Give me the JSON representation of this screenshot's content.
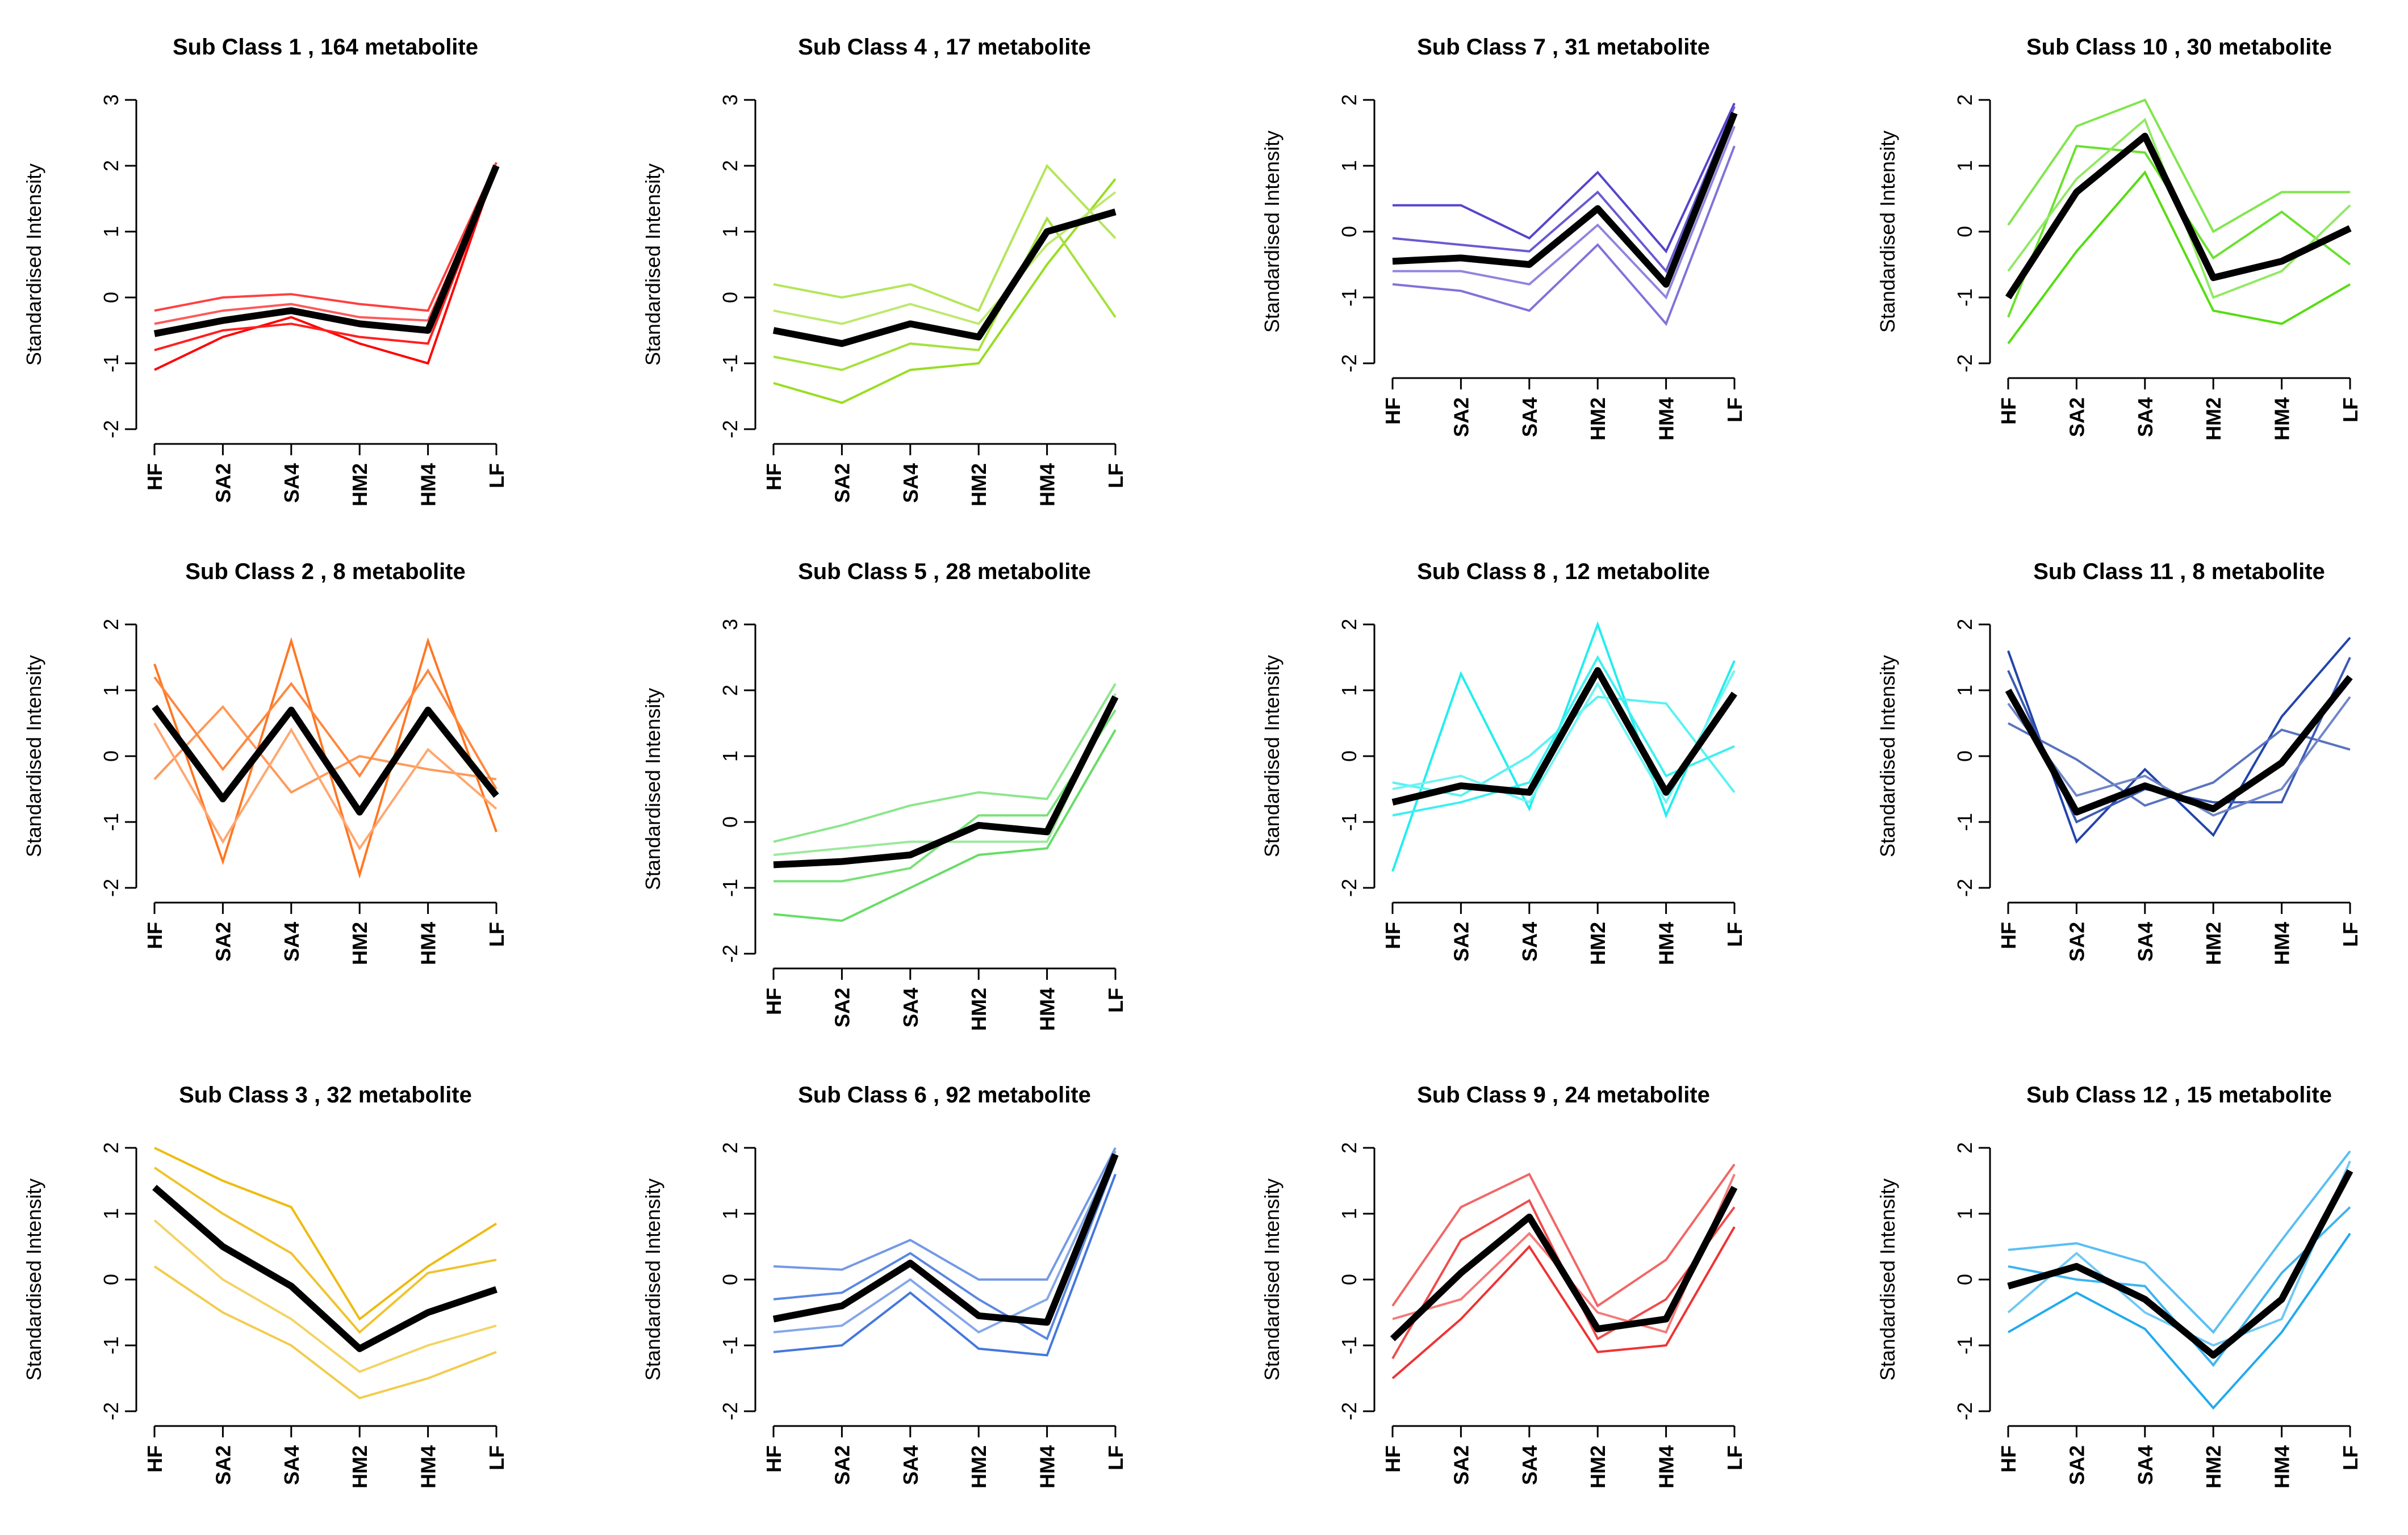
{
  "chart_data": [
    {
      "type": "line",
      "title": "Sub Class  1  , 164 metabolite",
      "ylabel": "Standardised Intensity",
      "categories": [
        "HF",
        "SA2",
        "SA4",
        "HM2",
        "HM4",
        "LF"
      ],
      "yticks": [
        -2,
        -1,
        0,
        1,
        2,
        3
      ],
      "ylim": [
        -2,
        3
      ],
      "color": "#FF0000",
      "series": [
        {
          "name": "mean",
          "values": [
            -0.55,
            -0.35,
            -0.2,
            -0.4,
            -0.5,
            2.0
          ]
        },
        {
          "name": "member-1",
          "values": [
            -1.1,
            -0.6,
            -0.3,
            -0.7,
            -1.0,
            2.0
          ]
        },
        {
          "name": "member-2",
          "values": [
            -0.2,
            0.0,
            0.05,
            -0.1,
            -0.2,
            2.05
          ]
        },
        {
          "name": "member-3",
          "values": [
            -0.8,
            -0.5,
            -0.4,
            -0.6,
            -0.7,
            1.95
          ]
        },
        {
          "name": "member-4",
          "values": [
            -0.4,
            -0.2,
            -0.1,
            -0.3,
            -0.35,
            2.0
          ]
        }
      ]
    },
    {
      "type": "line",
      "title": "Sub Class  4  , 17 metabolite",
      "ylabel": "Standardised Intensity",
      "categories": [
        "HF",
        "SA2",
        "SA4",
        "HM2",
        "HM4",
        "LF"
      ],
      "yticks": [
        -2,
        -1,
        0,
        1,
        2,
        3
      ],
      "ylim": [
        -2,
        3
      ],
      "color": "#99DD22",
      "series": [
        {
          "name": "mean",
          "values": [
            -0.5,
            -0.7,
            -0.4,
            -0.6,
            1.0,
            1.3
          ]
        },
        {
          "name": "member-1",
          "values": [
            -1.3,
            -1.6,
            -1.1,
            -1.0,
            0.5,
            1.8
          ]
        },
        {
          "name": "member-2",
          "values": [
            0.2,
            0.0,
            0.2,
            -0.2,
            2.0,
            0.9
          ]
        },
        {
          "name": "member-3",
          "values": [
            -0.9,
            -1.1,
            -0.7,
            -0.8,
            1.2,
            -0.3
          ]
        },
        {
          "name": "member-4",
          "values": [
            -0.2,
            -0.4,
            -0.1,
            -0.4,
            0.8,
            1.6
          ]
        }
      ]
    },
    {
      "type": "line",
      "title": "Sub Class  7  , 31 metabolite",
      "ylabel": "Standardised Intensity",
      "categories": [
        "HF",
        "SA2",
        "SA4",
        "HM2",
        "HM4",
        "LF"
      ],
      "yticks": [
        -2,
        -1,
        0,
        1,
        2
      ],
      "ylim": [
        -2,
        2
      ],
      "color": "#5544CC",
      "series": [
        {
          "name": "mean",
          "values": [
            -0.45,
            -0.4,
            -0.5,
            0.35,
            -0.8,
            1.8
          ]
        },
        {
          "name": "member-1",
          "values": [
            0.4,
            0.4,
            -0.1,
            0.9,
            -0.3,
            1.95
          ]
        },
        {
          "name": "member-2",
          "values": [
            -0.8,
            -0.9,
            -1.2,
            -0.2,
            -1.4,
            1.3
          ]
        },
        {
          "name": "member-3",
          "values": [
            -0.1,
            -0.2,
            -0.3,
            0.6,
            -0.6,
            1.9
          ]
        },
        {
          "name": "member-4",
          "values": [
            -0.6,
            -0.6,
            -0.8,
            0.1,
            -1.0,
            1.6
          ]
        }
      ]
    },
    {
      "type": "line",
      "title": "Sub Class  10  , 30 metabolite",
      "ylabel": "Standardised Intensity",
      "categories": [
        "HF",
        "SA2",
        "SA4",
        "HM2",
        "HM4",
        "LF"
      ],
      "yticks": [
        -2,
        -1,
        0,
        1,
        2
      ],
      "ylim": [
        -2,
        2
      ],
      "color": "#55DD11",
      "series": [
        {
          "name": "mean",
          "values": [
            -1.0,
            0.6,
            1.45,
            -0.7,
            -0.45,
            0.05
          ]
        },
        {
          "name": "member-1",
          "values": [
            -1.7,
            -0.3,
            0.9,
            -1.2,
            -1.4,
            -0.8
          ]
        },
        {
          "name": "member-2",
          "values": [
            0.1,
            1.6,
            2.0,
            0.0,
            0.6,
            0.6
          ]
        },
        {
          "name": "member-3",
          "values": [
            -1.3,
            1.3,
            1.2,
            -0.4,
            0.3,
            -0.5
          ]
        },
        {
          "name": "member-4",
          "values": [
            -0.6,
            0.8,
            1.7,
            -1.0,
            -0.6,
            0.4
          ]
        }
      ]
    },
    {
      "type": "line",
      "title": "Sub Class  2  , 8 metabolite",
      "ylabel": "Standardised Intensity",
      "categories": [
        "HF",
        "SA2",
        "SA4",
        "HM2",
        "HM4",
        "LF"
      ],
      "yticks": [
        -2,
        -1,
        0,
        1,
        2
      ],
      "ylim": [
        -2,
        2
      ],
      "color": "#FF7722",
      "series": [
        {
          "name": "mean",
          "values": [
            0.75,
            -0.65,
            0.7,
            -0.85,
            0.7,
            -0.6
          ]
        },
        {
          "name": "member-1",
          "values": [
            1.4,
            -1.6,
            1.75,
            -1.8,
            1.75,
            -1.15
          ]
        },
        {
          "name": "member-2",
          "values": [
            -0.35,
            0.75,
            -0.55,
            0.0,
            -0.2,
            -0.35
          ]
        },
        {
          "name": "member-3",
          "values": [
            1.2,
            -0.2,
            1.1,
            -0.3,
            1.3,
            -0.5
          ]
        },
        {
          "name": "member-4",
          "values": [
            0.5,
            -1.3,
            0.4,
            -1.4,
            0.1,
            -0.8
          ]
        }
      ]
    },
    {
      "type": "line",
      "title": "Sub Class  5  , 28 metabolite",
      "ylabel": "Standardised Intensity",
      "categories": [
        "HF",
        "SA2",
        "SA4",
        "HM2",
        "HM4",
        "LF"
      ],
      "yticks": [
        -2,
        -1,
        0,
        1,
        2,
        3
      ],
      "ylim": [
        -2,
        3
      ],
      "color": "#66DD66",
      "series": [
        {
          "name": "mean",
          "values": [
            -0.65,
            -0.6,
            -0.5,
            -0.05,
            -0.15,
            1.9
          ]
        },
        {
          "name": "member-1",
          "values": [
            -1.4,
            -1.5,
            -1.0,
            -0.5,
            -0.4,
            1.4
          ]
        },
        {
          "name": "member-2",
          "values": [
            -0.3,
            -0.05,
            0.25,
            0.45,
            0.35,
            2.1
          ]
        },
        {
          "name": "member-3",
          "values": [
            -0.9,
            -0.9,
            -0.7,
            0.1,
            0.1,
            1.7
          ]
        },
        {
          "name": "member-4",
          "values": [
            -0.5,
            -0.4,
            -0.3,
            -0.3,
            -0.3,
            1.95
          ]
        }
      ]
    },
    {
      "type": "line",
      "title": "Sub Class  8  , 12 metabolite",
      "ylabel": "Standardised Intensity",
      "categories": [
        "HF",
        "SA2",
        "SA4",
        "HM2",
        "HM4",
        "LF"
      ],
      "yticks": [
        -2,
        -1,
        0,
        1,
        2
      ],
      "ylim": [
        -2,
        2
      ],
      "color": "#22EEEE",
      "series": [
        {
          "name": "mean",
          "values": [
            -0.7,
            -0.45,
            -0.55,
            1.3,
            -0.55,
            0.95
          ]
        },
        {
          "name": "member-1",
          "values": [
            -1.75,
            1.25,
            -0.8,
            2.0,
            -0.9,
            1.45
          ]
        },
        {
          "name": "member-2",
          "values": [
            -0.4,
            -0.6,
            0.0,
            0.9,
            0.8,
            -0.55
          ]
        },
        {
          "name": "member-3",
          "values": [
            -0.9,
            -0.7,
            -0.4,
            1.5,
            -0.3,
            0.15
          ]
        },
        {
          "name": "member-4",
          "values": [
            -0.5,
            -0.3,
            -0.7,
            1.1,
            -0.7,
            1.3
          ]
        }
      ]
    },
    {
      "type": "line",
      "title": "Sub Class  11  , 8 metabolite",
      "ylabel": "Standardised Intensity",
      "categories": [
        "HF",
        "SA2",
        "SA4",
        "HM2",
        "HM4",
        "LF"
      ],
      "yticks": [
        -2,
        -1,
        0,
        1,
        2
      ],
      "ylim": [
        -2,
        2
      ],
      "color": "#2244AA",
      "series": [
        {
          "name": "mean",
          "values": [
            1.0,
            -0.85,
            -0.45,
            -0.8,
            -0.1,
            1.2
          ]
        },
        {
          "name": "member-1",
          "values": [
            1.6,
            -1.3,
            -0.2,
            -1.2,
            0.6,
            1.8
          ]
        },
        {
          "name": "member-2",
          "values": [
            0.5,
            -0.05,
            -0.75,
            -0.4,
            0.4,
            0.1
          ]
        },
        {
          "name": "member-3",
          "values": [
            1.3,
            -1.0,
            -0.5,
            -0.7,
            -0.7,
            1.5
          ]
        },
        {
          "name": "member-4",
          "values": [
            0.8,
            -0.6,
            -0.3,
            -0.9,
            -0.5,
            0.9
          ]
        }
      ]
    },
    {
      "type": "line",
      "title": "Sub Class  3  , 32 metabolite",
      "ylabel": "Standardised Intensity",
      "categories": [
        "HF",
        "SA2",
        "SA4",
        "HM2",
        "HM4",
        "LF"
      ],
      "yticks": [
        -2,
        -1,
        0,
        1,
        2
      ],
      "ylim": [
        -2,
        2
      ],
      "color": "#EEBB11",
      "series": [
        {
          "name": "mean",
          "values": [
            1.4,
            0.5,
            -0.1,
            -1.05,
            -0.5,
            -0.15
          ]
        },
        {
          "name": "member-1",
          "values": [
            2.0,
            1.5,
            1.1,
            -0.6,
            0.2,
            0.85
          ]
        },
        {
          "name": "member-2",
          "values": [
            0.2,
            -0.5,
            -1.0,
            -1.8,
            -1.5,
            -1.1
          ]
        },
        {
          "name": "member-3",
          "values": [
            1.7,
            1.0,
            0.4,
            -0.8,
            0.1,
            0.3
          ]
        },
        {
          "name": "member-4",
          "values": [
            0.9,
            0.0,
            -0.6,
            -1.4,
            -1.0,
            -0.7
          ]
        }
      ]
    },
    {
      "type": "line",
      "title": "Sub Class  6  , 92 metabolite",
      "ylabel": "Standardised Intensity",
      "categories": [
        "HF",
        "SA2",
        "SA4",
        "HM2",
        "HM4",
        "LF"
      ],
      "yticks": [
        -2,
        -1,
        0,
        1,
        2
      ],
      "ylim": [
        -2,
        2
      ],
      "color": "#4477DD",
      "series": [
        {
          "name": "mean",
          "values": [
            -0.6,
            -0.4,
            0.25,
            -0.55,
            -0.65,
            1.9
          ]
        },
        {
          "name": "member-1",
          "values": [
            -1.1,
            -1.0,
            -0.2,
            -1.05,
            -1.15,
            1.6
          ]
        },
        {
          "name": "member-2",
          "values": [
            0.2,
            0.15,
            0.6,
            0.0,
            0.0,
            2.0
          ]
        },
        {
          "name": "member-3",
          "values": [
            -0.3,
            -0.2,
            0.4,
            -0.3,
            -0.9,
            1.8
          ]
        },
        {
          "name": "member-4",
          "values": [
            -0.8,
            -0.7,
            0.0,
            -0.8,
            -0.3,
            1.95
          ]
        }
      ]
    },
    {
      "type": "line",
      "title": "Sub Class  9  , 24 metabolite",
      "ylabel": "Standardised Intensity",
      "categories": [
        "HF",
        "SA2",
        "SA4",
        "HM2",
        "HM4",
        "LF"
      ],
      "yticks": [
        -2,
        -1,
        0,
        1,
        2
      ],
      "ylim": [
        -2,
        2
      ],
      "color": "#EE3333",
      "series": [
        {
          "name": "mean",
          "values": [
            -0.9,
            0.1,
            0.95,
            -0.75,
            -0.6,
            1.4
          ]
        },
        {
          "name": "member-1",
          "values": [
            -1.5,
            -0.6,
            0.5,
            -1.1,
            -1.0,
            0.8
          ]
        },
        {
          "name": "member-2",
          "values": [
            -0.4,
            1.1,
            1.6,
            -0.4,
            0.3,
            1.75
          ]
        },
        {
          "name": "member-3",
          "values": [
            -1.2,
            0.6,
            1.2,
            -0.9,
            -0.3,
            1.1
          ]
        },
        {
          "name": "member-4",
          "values": [
            -0.6,
            -0.3,
            0.7,
            -0.5,
            -0.8,
            1.6
          ]
        }
      ]
    },
    {
      "type": "line",
      "title": "Sub Class  12  , 15 metabolite",
      "ylabel": "Standardised Intensity",
      "categories": [
        "HF",
        "SA2",
        "SA4",
        "HM2",
        "HM4",
        "LF"
      ],
      "yticks": [
        -2,
        -1,
        0,
        1,
        2
      ],
      "ylim": [
        -2,
        2
      ],
      "color": "#22AAEE",
      "series": [
        {
          "name": "mean",
          "values": [
            -0.1,
            0.2,
            -0.3,
            -1.15,
            -0.3,
            1.65
          ]
        },
        {
          "name": "member-1",
          "values": [
            -0.8,
            -0.2,
            -0.75,
            -1.95,
            -0.8,
            0.7
          ]
        },
        {
          "name": "member-2",
          "values": [
            0.45,
            0.55,
            0.25,
            -0.8,
            0.6,
            1.95
          ]
        },
        {
          "name": "member-3",
          "values": [
            0.2,
            0.0,
            -0.1,
            -1.3,
            0.1,
            1.1
          ]
        },
        {
          "name": "member-4",
          "values": [
            -0.5,
            0.4,
            -0.5,
            -1.0,
            -0.6,
            1.8
          ]
        }
      ]
    }
  ]
}
